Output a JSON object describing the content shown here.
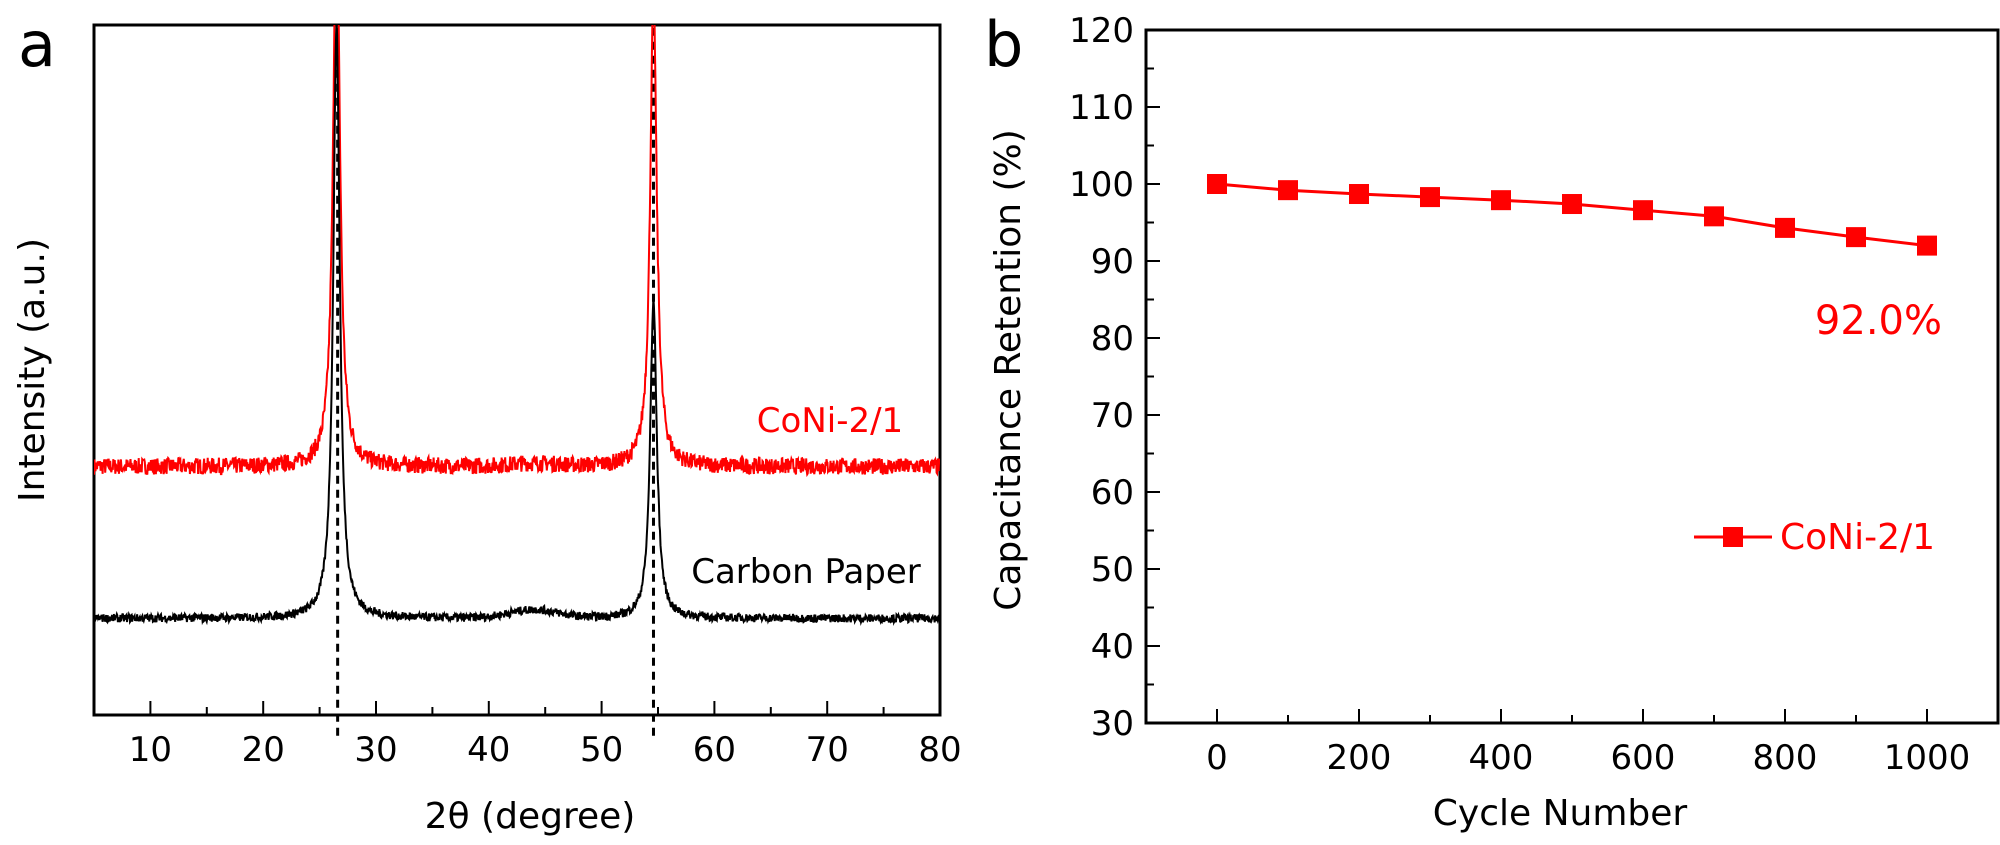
{
  "colors": {
    "red": "#ff0000",
    "black": "#000000",
    "axis": "#000000"
  },
  "chart_data": [
    {
      "panel_label": "a",
      "type": "line",
      "title": "",
      "xlabel_prefix": "2",
      "xlabel_symbol": "θ",
      "xlabel_suffix": " (degree)",
      "ylabel": "Intensity (a.u.)",
      "xlim": [
        5,
        80
      ],
      "ylim": [
        0,
        100
      ],
      "x_ticks": [
        10,
        20,
        30,
        40,
        50,
        60,
        70,
        80
      ],
      "y_ticks_shown": false,
      "reference_lines_x": [
        26.6,
        54.6
      ],
      "series": [
        {
          "name": "CoNi-2/1",
          "color": "#ff0000",
          "baseline": 36,
          "peaks": [
            {
              "x": 26.5,
              "height": 120
            },
            {
              "x": 54.6,
              "height": 105
            }
          ],
          "x": [
            5,
            15,
            20,
            24,
            25.5,
            26.5,
            27.5,
            29,
            35,
            45,
            52,
            54,
            54.6,
            55.2,
            57,
            65,
            80
          ],
          "values": [
            36,
            36,
            36.5,
            38,
            43,
            120,
            43,
            37.5,
            35.5,
            35.5,
            36,
            41,
            105,
            41,
            36,
            35.5,
            35.5
          ]
        },
        {
          "name": "Carbon Paper",
          "color": "#000000",
          "baseline": 14,
          "peaks": [
            {
              "x": 26.5,
              "height": 100
            },
            {
              "x": 54.6,
              "height": 60
            }
          ],
          "x": [
            5,
            15,
            20,
            24,
            25.5,
            26.5,
            27.5,
            29,
            35,
            40,
            44,
            48,
            52,
            54,
            54.6,
            55.2,
            57,
            65,
            80
          ],
          "values": [
            17,
            15.5,
            16,
            18.5,
            25,
            100,
            25,
            17,
            14,
            13.5,
            14.5,
            13.5,
            14.5,
            20,
            60,
            20,
            14,
            13.5,
            13.5
          ]
        }
      ],
      "annotations": [
        {
          "text": "CoNi-2/1",
          "x": 63,
          "y": 43,
          "color": "#ff0000"
        },
        {
          "text": "Carbon Paper",
          "x": 67,
          "y": 21,
          "color": "#000000"
        }
      ]
    },
    {
      "panel_label": "b",
      "type": "line",
      "title": "",
      "xlabel": "Cycle Number",
      "ylabel": "Capacitance Retention (%)",
      "xlim": [
        -100,
        1100
      ],
      "ylim": [
        30,
        120
      ],
      "x_ticks": [
        0,
        200,
        400,
        600,
        800,
        1000
      ],
      "y_ticks": [
        30,
        40,
        50,
        60,
        70,
        80,
        90,
        100,
        110,
        120
      ],
      "series": [
        {
          "name": "CoNi-2/1",
          "color": "#ff0000",
          "marker": "square",
          "x": [
            0,
            100,
            200,
            300,
            400,
            500,
            600,
            700,
            800,
            900,
            1000
          ],
          "values": [
            100,
            99.2,
            98.7,
            98.3,
            97.9,
            97.4,
            96.6,
            95.8,
            94.3,
            93.1,
            92.0
          ]
        }
      ],
      "annotations": [
        {
          "text": "92.0%",
          "x": 970,
          "y": 83,
          "color": "#ff0000"
        }
      ],
      "legend": {
        "position": "bottom-right",
        "label": "CoNi-2/1"
      }
    }
  ]
}
